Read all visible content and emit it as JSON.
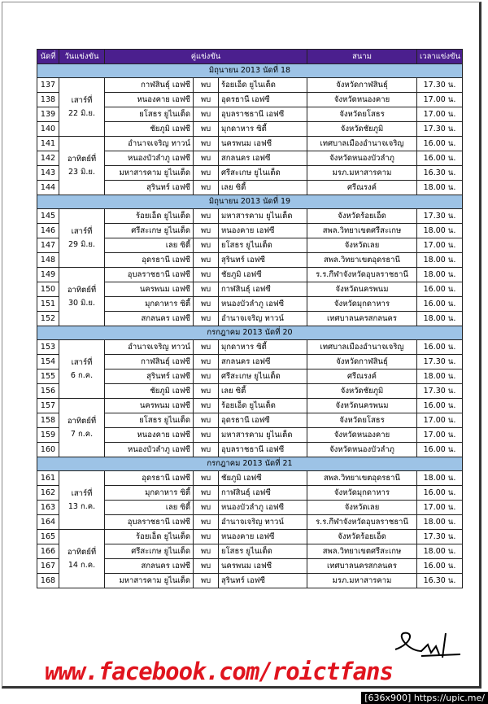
{
  "table": {
    "columns": [
      "นัดที่",
      "วันแข่งขัน",
      "คู่แข่งขัน",
      "สนาม",
      "เวลาแข่งขัน"
    ],
    "sections": [
      {
        "title": "มิถุนายน 2013 นัดที่ 18",
        "days": [
          {
            "day": [
              "เสาร์ที่",
              "22 มิ.ย."
            ],
            "matches": [
              [
                "137",
                "กาฬสินธุ์ เอฟซี",
                "พบ",
                "ร้อยเอ็ด ยูไนเต็ด",
                "จังหวัดกาฬสินธุ์",
                "17.30 น."
              ],
              [
                "138",
                "หนองคาย เอฟซี",
                "พบ",
                "อุดรธานี เอฟซี",
                "จังหวัดหนองคาย",
                "17.00 น."
              ],
              [
                "139",
                "ยโสธร ยูไนเต็ด",
                "พบ",
                "อุบลราชธานี เอฟซี",
                "จังหวัดยโสธร",
                "17.00 น."
              ],
              [
                "140",
                "ชัยภูมิ เอฟซี",
                "พบ",
                "มุกดาหาร ซิตี้",
                "จังหวัดชัยภูมิ",
                "17.30 น."
              ]
            ]
          },
          {
            "day": [
              "อาทิตย์ที่",
              "23 มิ.ย."
            ],
            "matches": [
              [
                "141",
                "อำนาจเจริญ ทาวน์",
                "พบ",
                "นครพนม เอฟซี",
                "เทศบาลเมืองอำนาจเจริญ",
                "16.00 น."
              ],
              [
                "142",
                "หนองบัวลำภู เอฟซี",
                "พบ",
                "สกลนคร เอฟซี",
                "จังหวัดหนองบัวลำภู",
                "16.00 น."
              ],
              [
                "143",
                "มหาสารคาม ยูไนเต็ด",
                "พบ",
                "ศรีสะเกษ ยูไนเต็ด",
                "มรภ.มหาสารคาม",
                "16.30 น."
              ],
              [
                "144",
                "สุรินทร์ เอฟซี",
                "พบ",
                "เลย ซิตี้",
                "ศรีณรงค์",
                "18.00 น."
              ]
            ]
          }
        ]
      },
      {
        "title": "มิถุนายน 2013 นัดที่ 19",
        "days": [
          {
            "day": [
              "เสาร์ที่",
              "29 มิ.ย."
            ],
            "matches": [
              [
                "145",
                "ร้อยเอ็ด ยูไนเต็ด",
                "พบ",
                "มหาสารคาม ยูไนเต็ด",
                "จังหวัดร้อยเอ็ด",
                "17.30 น."
              ],
              [
                "146",
                "ศรีสะเกษ ยูไนเต็ด",
                "พบ",
                "หนองคาย เอฟซี",
                "สพล.วิทยาเขตศรีสะเกษ",
                "18.00 น."
              ],
              [
                "147",
                "เลย ซิตี้",
                "พบ",
                "ยโสธร ยูไนเต็ด",
                "จังหวัดเลย",
                "17.00 น."
              ],
              [
                "148",
                "อุดรธานี เอฟซี",
                "พบ",
                "สุรินทร์ เอฟซี",
                "สพล.วิทยาเขตอุดรธานี",
                "18.00 น."
              ]
            ]
          },
          {
            "day": [
              "อาทิตย์ที่",
              "30 มิ.ย."
            ],
            "matches": [
              [
                "149",
                "อุบลราชธานี เอฟซี",
                "พบ",
                "ชัยภูมิ เอฟซี",
                "ร.ร.กีฬาจังหวัดอุบลราชธานี",
                "18.00 น."
              ],
              [
                "150",
                "นครพนม เอฟซี",
                "พบ",
                "กาฬสินธุ์ เอฟซี",
                "จังหวัดนครพนม",
                "16.00 น."
              ],
              [
                "151",
                "มุกดาหาร ซิตี้",
                "พบ",
                "หนองบัวลำภู เอฟซี",
                "จังหวัดมุกดาหาร",
                "16.00 น."
              ],
              [
                "152",
                "สกลนคร เอฟซี",
                "พบ",
                "อำนาจเจริญ ทาวน์",
                "เทศบาลนครสกลนคร",
                "18.00 น."
              ]
            ]
          }
        ]
      },
      {
        "title": "กรกฎาคม 2013 นัดที่ 20",
        "days": [
          {
            "day": [
              "เสาร์ที่",
              "6 ก.ค."
            ],
            "matches": [
              [
                "153",
                "อำนาจเจริญ ทาวน์",
                "พบ",
                "มุกดาหาร ซิตี้",
                "เทศบาลเมืองอำนาจเจริญ",
                "16.00 น."
              ],
              [
                "154",
                "กาฬสินธุ์ เอฟซี",
                "พบ",
                "สกลนคร เอฟซี",
                "จังหวัดกาฬสินธุ์",
                "17.30 น."
              ],
              [
                "155",
                "สุรินทร์ เอฟซี",
                "พบ",
                "ศรีสะเกษ ยูไนเต็ด",
                "ศรีณรงค์",
                "18.00 น."
              ],
              [
                "156",
                "ชัยภูมิ เอฟซี",
                "พบ",
                "เลย ซิตี้",
                "จังหวัดชัยภูมิ",
                "17.30 น."
              ]
            ]
          },
          {
            "day": [
              "อาทิตย์ที่",
              "7 ก.ค."
            ],
            "matches": [
              [
                "157",
                "นครพนม เอฟซี",
                "พบ",
                "ร้อยเอ็ด ยูไนเต็ด",
                "จังหวัดนครพนม",
                "16.00 น."
              ],
              [
                "158",
                "ยโสธร ยูไนเต็ด",
                "พบ",
                "อุดรธานี เอฟซี",
                "จังหวัดยโสธร",
                "17.00 น."
              ],
              [
                "159",
                "หนองคาย เอฟซี",
                "พบ",
                "มหาสารคาม ยูไนเต็ด",
                "จังหวัดหนองคาย",
                "17.00 น."
              ],
              [
                "160",
                "หนองบัวลำภู เอฟซี",
                "พบ",
                "อุบลราชธานี เอฟซี",
                "จังหวัดหนองบัวลำภู",
                "16.00 น."
              ]
            ]
          }
        ]
      },
      {
        "title": "กรกฎาคม 2013 นัดที่ 21",
        "days": [
          {
            "day": [
              "เสาร์ที่",
              "13 ก.ค."
            ],
            "matches": [
              [
                "161",
                "อุดรธานี เอฟซี",
                "พบ",
                "ชัยภูมิ เอฟซี",
                "สพล.วิทยาเขตอุดรธานี",
                "18.00 น."
              ],
              [
                "162",
                "มุกดาหาร ซิตี้",
                "พบ",
                "กาฬสินธุ์ เอฟซี",
                "จังหวัดมุกดาหาร",
                "16.00 น."
              ],
              [
                "163",
                "เลย ซิตี้",
                "พบ",
                "หนองบัวลำภู เอฟซี",
                "จังหวัดเลย",
                "17.00 น."
              ],
              [
                "164",
                "อุบลราชธานี เอฟซี",
                "พบ",
                "อำนาจเจริญ ทาวน์",
                "ร.ร.กีฬาจังหวัดอุบลราชธานี",
                "18.00 น."
              ]
            ]
          },
          {
            "day": [
              "อาทิตย์ที่",
              "14 ก.ค."
            ],
            "matches": [
              [
                "165",
                "ร้อยเอ็ด ยูไนเต็ด",
                "พบ",
                "หนองคาย เอฟซี",
                "จังหวัดร้อยเอ็ด",
                "17.30 น."
              ],
              [
                "166",
                "ศรีสะเกษ ยูไนเต็ด",
                "พบ",
                "ยโสธร ยูไนเต็ด",
                "สพล.วิทยาเขตศรีสะเกษ",
                "18.00 น."
              ],
              [
                "167",
                "สกลนคร เอฟซี",
                "พบ",
                "นครพนม เอฟซี",
                "เทศบาลนครสกลนคร",
                "16.00 น."
              ],
              [
                "168",
                "มหาสารคาม ยูไนเต็ด",
                "พบ",
                "สุรินทร์ เอฟซี",
                "มรภ.มหาสารคาม",
                "16.30 น."
              ]
            ]
          }
        ]
      }
    ]
  },
  "footer": {
    "link": "www.facebook.com/roictfans",
    "watermark": "[636x900] https://upic.me/"
  }
}
